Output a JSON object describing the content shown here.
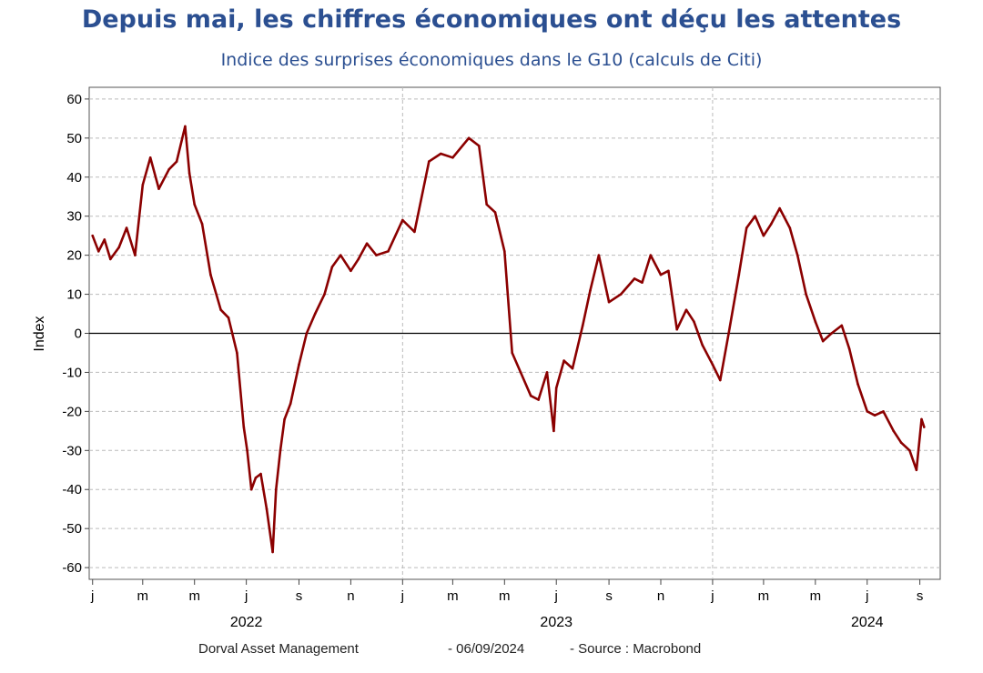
{
  "header": {
    "title": "Depuis mai, les chiffres économiques ont déçu les attentes",
    "subtitle": "Indice des surprises économiques dans le G10 (calculs de Citi)"
  },
  "footer": {
    "author": "Dorval Asset Management",
    "date": "- 06/09/2024",
    "source": "-   Source : Macrobond"
  },
  "colors": {
    "line": "#8b0000",
    "grid": "#bbbbbb",
    "zero": "#000000",
    "text": "#2b4f91"
  },
  "chart_data": {
    "type": "line",
    "ylabel": "Index",
    "ylim": [
      -63,
      63
    ],
    "yticks": [
      60,
      50,
      40,
      30,
      20,
      10,
      0,
      -10,
      -20,
      -30,
      -40,
      -50,
      -60
    ],
    "grid": true,
    "xlim": [
      "2021-12-28",
      "2024-09-25"
    ],
    "month_ticks": [
      {
        "date": "2022-01-01",
        "label": "j"
      },
      {
        "date": "2022-03-01",
        "label": "m"
      },
      {
        "date": "2022-05-01",
        "label": "m"
      },
      {
        "date": "2022-07-01",
        "label": "j"
      },
      {
        "date": "2022-09-01",
        "label": "s"
      },
      {
        "date": "2022-11-01",
        "label": "n"
      },
      {
        "date": "2023-01-01",
        "label": "j"
      },
      {
        "date": "2023-03-01",
        "label": "m"
      },
      {
        "date": "2023-05-01",
        "label": "m"
      },
      {
        "date": "2023-07-01",
        "label": "j"
      },
      {
        "date": "2023-09-01",
        "label": "s"
      },
      {
        "date": "2023-11-01",
        "label": "n"
      },
      {
        "date": "2024-01-01",
        "label": "j"
      },
      {
        "date": "2024-03-01",
        "label": "m"
      },
      {
        "date": "2024-05-01",
        "label": "m"
      },
      {
        "date": "2024-07-01",
        "label": "j"
      },
      {
        "date": "2024-09-01",
        "label": "s"
      }
    ],
    "year_labels": [
      {
        "date": "2022-07-01",
        "label": "2022"
      },
      {
        "date": "2023-07-01",
        "label": "2023"
      },
      {
        "date": "2024-07-01",
        "label": "2024"
      }
    ],
    "year_gridlines": [
      "2023-01-01",
      "2024-01-01"
    ],
    "series": [
      {
        "x": [
          "2022-01-01",
          "2022-01-08",
          "2022-01-15",
          "2022-01-22",
          "2022-02-01",
          "2022-02-10",
          "2022-02-20",
          "2022-03-01",
          "2022-03-10",
          "2022-03-20",
          "2022-04-01",
          "2022-04-10",
          "2022-04-20",
          "2022-04-25",
          "2022-05-01",
          "2022-05-10",
          "2022-05-20",
          "2022-06-01",
          "2022-06-10",
          "2022-06-20",
          "2022-06-28",
          "2022-07-02",
          "2022-07-07",
          "2022-07-12",
          "2022-07-18",
          "2022-07-25",
          "2022-08-01",
          "2022-08-05",
          "2022-08-10",
          "2022-08-15",
          "2022-08-22",
          "2022-09-01",
          "2022-09-10",
          "2022-09-20",
          "2022-10-01",
          "2022-10-10",
          "2022-10-20",
          "2022-11-01",
          "2022-11-10",
          "2022-11-20",
          "2022-12-01",
          "2022-12-15",
          "2023-01-01",
          "2023-01-15",
          "2023-02-01",
          "2023-02-15",
          "2023-03-01",
          "2023-03-20",
          "2023-04-01",
          "2023-04-10",
          "2023-04-20",
          "2023-05-01",
          "2023-05-10",
          "2023-05-20",
          "2023-06-01",
          "2023-06-10",
          "2023-06-20",
          "2023-06-28",
          "2023-07-01",
          "2023-07-10",
          "2023-07-20",
          "2023-08-01",
          "2023-08-10",
          "2023-08-20",
          "2023-09-01",
          "2023-09-15",
          "2023-10-01",
          "2023-10-10",
          "2023-10-20",
          "2023-11-01",
          "2023-11-10",
          "2023-11-20",
          "2023-12-01",
          "2023-12-10",
          "2023-12-20",
          "2024-01-01",
          "2024-01-10",
          "2024-01-20",
          "2024-02-01",
          "2024-02-10",
          "2024-02-20",
          "2024-03-01",
          "2024-03-10",
          "2024-03-20",
          "2024-04-01",
          "2024-04-10",
          "2024-04-20",
          "2024-05-01",
          "2024-05-10",
          "2024-05-20",
          "2024-06-01",
          "2024-06-10",
          "2024-06-20",
          "2024-07-01",
          "2024-07-10",
          "2024-07-20",
          "2024-08-01",
          "2024-08-10",
          "2024-08-20",
          "2024-08-28",
          "2024-09-03",
          "2024-09-06"
        ],
        "values": [
          25,
          21,
          24,
          19,
          22,
          27,
          20,
          38,
          45,
          37,
          42,
          44,
          53,
          41,
          33,
          28,
          15,
          6,
          4,
          -5,
          -24,
          -30,
          -40,
          -37,
          -36,
          -45,
          -56,
          -40,
          -30,
          -22,
          -18,
          -8,
          0,
          5,
          10,
          17,
          20,
          16,
          19,
          23,
          20,
          21,
          29,
          26,
          44,
          46,
          45,
          50,
          48,
          33,
          31,
          21,
          -5,
          -10,
          -16,
          -17,
          -10,
          -25,
          -14,
          -7,
          -9,
          2,
          11,
          20,
          8,
          10,
          14,
          13,
          20,
          15,
          16,
          1,
          6,
          3,
          -3,
          -8,
          -12,
          0,
          15,
          27,
          30,
          25,
          28,
          32,
          27,
          20,
          10,
          3,
          -2,
          0,
          2,
          -4,
          -13,
          -20,
          -21,
          -20,
          -25,
          -28,
          -30,
          -35,
          -22,
          -24
        ]
      }
    ]
  }
}
